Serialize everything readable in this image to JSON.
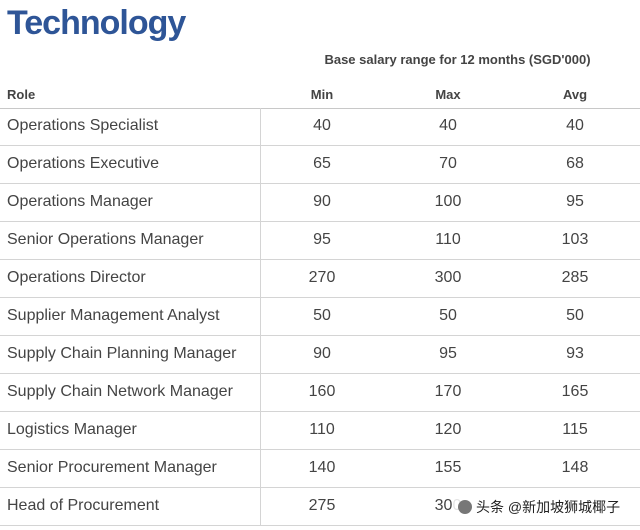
{
  "title": "Technology",
  "subheader": "Base salary range for 12 months (SGD'000)",
  "columns": {
    "role": "Role",
    "min": "Min",
    "max": "Max",
    "avg": "Avg"
  },
  "rows": [
    {
      "role": "Operations Specialist",
      "min": "40",
      "max": "40",
      "avg": "40"
    },
    {
      "role": "Operations Executive",
      "min": "65",
      "max": "70",
      "avg": "68"
    },
    {
      "role": "Operations Manager",
      "min": "90",
      "max": "100",
      "avg": "95"
    },
    {
      "role": "Senior Operations Manager",
      "min": "95",
      "max": "110",
      "avg": "103"
    },
    {
      "role": "Operations Director",
      "min": "270",
      "max": "300",
      "avg": "285"
    },
    {
      "role": "Supplier Management Analyst",
      "min": "50",
      "max": "50",
      "avg": "50"
    },
    {
      "role": "Supply Chain Planning Manager",
      "min": "90",
      "max": "95",
      "avg": "93"
    },
    {
      "role": "Supply Chain Network Manager",
      "min": "160",
      "max": "170",
      "avg": "165"
    },
    {
      "role": "Logistics Manager",
      "min": "110",
      "max": "120",
      "avg": "115"
    },
    {
      "role": "Senior Procurement Manager",
      "min": "140",
      "max": "155",
      "avg": "148"
    },
    {
      "role": "Head of Procurement",
      "min": "275",
      "max": "300",
      "avg": ""
    }
  ],
  "watermark": "头条 @新加坡狮城椰子",
  "colors": {
    "title": "#2e5597",
    "divider": "#d4d4d4"
  }
}
